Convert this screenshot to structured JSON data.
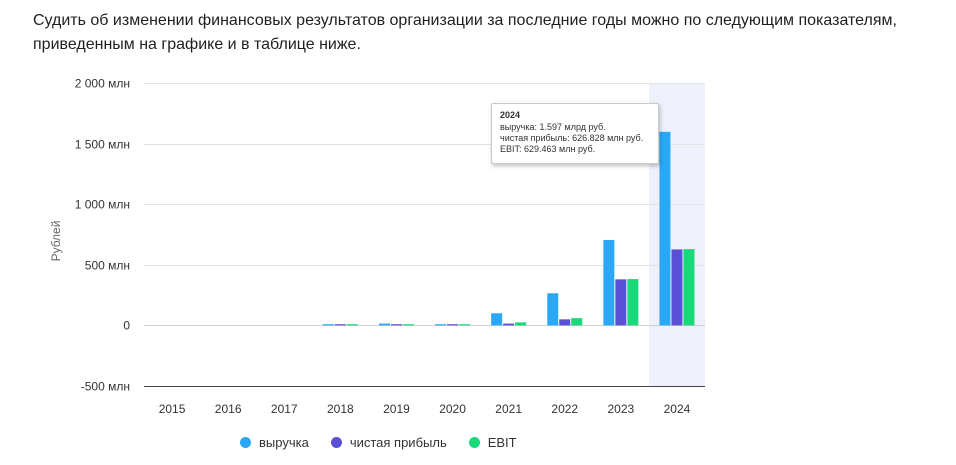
{
  "intro_text": "Судить об изменении финансовых результатов организации за последние годы можно по следующим показателям, приведенным на графике и в таблице ниже.",
  "colors": {
    "revenue": "#2ba8f5",
    "net_profit": "#5b4fd6",
    "ebit": "#17d97a",
    "highlight": "#eef0fc",
    "grid": "#e3e3e3",
    "zero_line": "#cfcfcf",
    "axis": "#444444"
  },
  "tooltip": {
    "title": "2024",
    "lines": [
      "выручка: 1.597 млрд руб.",
      "чистая прибыль: 626.828 млн руб.",
      "EBIT: 629.463 млн руб."
    ]
  },
  "legend": [
    {
      "label": "выручка",
      "color": "#2ba8f5"
    },
    {
      "label": "чистая прибыль",
      "color": "#5b4fd6"
    },
    {
      "label": "EBIT",
      "color": "#17d97a"
    }
  ],
  "chart_data": {
    "type": "bar",
    "ylabel": "Рублей",
    "ylim": [
      -500,
      2000
    ],
    "yticks": [
      {
        "value": 2000,
        "label": "2 000 млн"
      },
      {
        "value": 1500,
        "label": "1 500 млн"
      },
      {
        "value": 1000,
        "label": "1 000 млн"
      },
      {
        "value": 500,
        "label": "500 млн"
      },
      {
        "value": 0,
        "label": "0"
      },
      {
        "value": -500,
        "label": "-500 млн"
      }
    ],
    "categories": [
      "2015",
      "2016",
      "2017",
      "2018",
      "2019",
      "2020",
      "2021",
      "2022",
      "2023",
      "2024"
    ],
    "highlighted_category": "2024",
    "series": [
      {
        "name": "выручка",
        "key": "revenue",
        "values": [
          0,
          0,
          0,
          3,
          15,
          8,
          100,
          265,
          705,
          1597
        ]
      },
      {
        "name": "чистая прибыль",
        "key": "net_profit",
        "values": [
          0,
          0,
          0,
          2,
          8,
          1,
          15,
          50,
          380,
          626.828
        ]
      },
      {
        "name": "EBIT",
        "key": "ebit",
        "values": [
          0,
          0,
          0,
          3,
          10,
          2,
          25,
          60,
          382,
          629.463
        ]
      }
    ]
  }
}
